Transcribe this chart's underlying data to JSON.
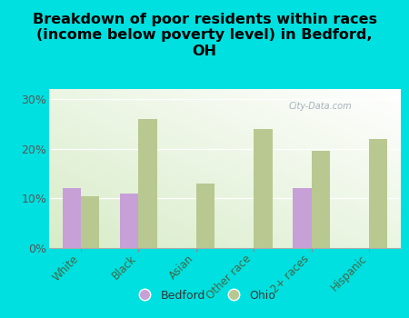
{
  "title": "Breakdown of poor residents within races\n(income below poverty level) in Bedford,\nOH",
  "categories": [
    "White",
    "Black",
    "Asian",
    "Other race",
    "2+ races",
    "Hispanic"
  ],
  "bedford_values": [
    12.0,
    11.0,
    0.0,
    0.0,
    12.0,
    0.0
  ],
  "ohio_values": [
    10.5,
    26.0,
    13.0,
    24.0,
    19.5,
    22.0
  ],
  "bedford_color": "#c8a0d8",
  "ohio_color": "#b8c890",
  "background_outer": "#00e0e0",
  "yticks": [
    0,
    10,
    20,
    30
  ],
  "ytick_labels": [
    "0%",
    "10%",
    "20%",
    "30%"
  ],
  "ylim": [
    0,
    32
  ],
  "bar_width": 0.32,
  "title_fontsize": 11.5,
  "watermark": "City-Data.com",
  "tick_label_color": "#555555",
  "xtick_label_color": "#446644"
}
